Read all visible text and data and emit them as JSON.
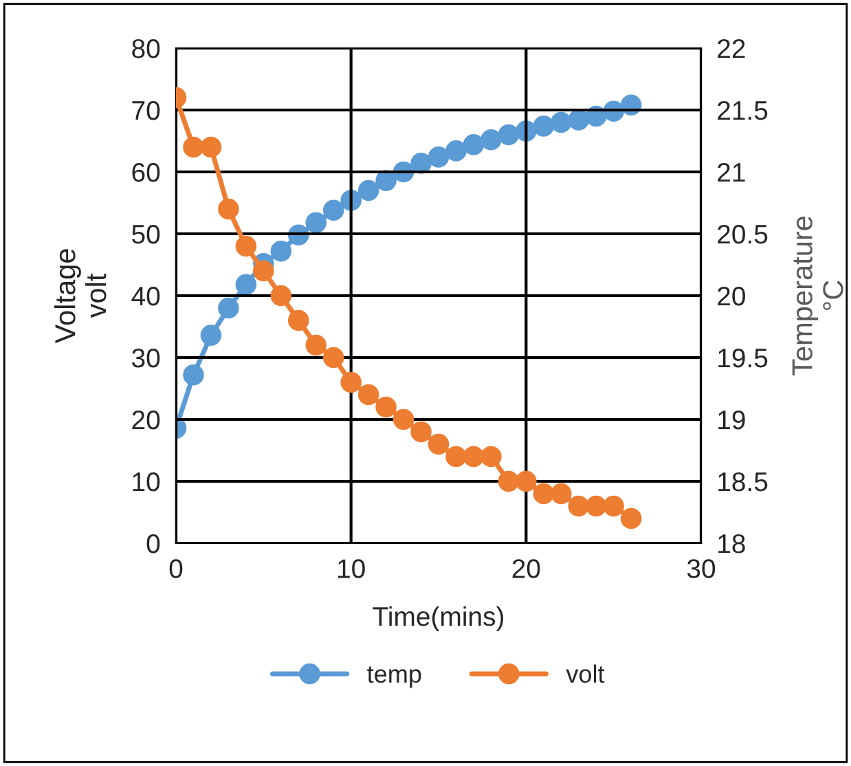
{
  "chart_data": {
    "type": "line",
    "xlabel": "Time(mins)",
    "ylabel": "Voltage\nvolt",
    "y2label": "Temperature\n°C",
    "x": [
      0,
      1,
      2,
      3,
      4,
      5,
      6,
      7,
      8,
      9,
      10,
      11,
      12,
      13,
      14,
      15,
      16,
      17,
      18,
      19,
      20,
      21,
      22,
      23,
      24,
      25,
      26
    ],
    "series": [
      {
        "name": "temp",
        "color": "#5b9bd5",
        "axis": "y2",
        "values": [
          18.93,
          19.36,
          19.68,
          19.9,
          20.09,
          20.26,
          20.36,
          20.49,
          20.59,
          20.69,
          20.77,
          20.85,
          20.93,
          21.0,
          21.07,
          21.12,
          21.17,
          21.22,
          21.26,
          21.3,
          21.33,
          21.37,
          21.4,
          21.42,
          21.45,
          21.49,
          21.54
        ]
      },
      {
        "name": "volt",
        "color": "#ed7d31",
        "values": [
          72,
          64,
          64,
          54,
          48,
          44,
          40,
          36,
          32,
          30,
          26,
          24,
          22,
          20,
          18,
          16,
          14,
          14,
          14,
          10,
          10,
          8,
          8,
          6,
          6,
          6,
          4
        ]
      }
    ],
    "xlim": [
      0,
      30
    ],
    "xticks": [
      0,
      10,
      20,
      30
    ],
    "ylim": [
      0,
      80
    ],
    "yticks": [
      0,
      10,
      20,
      30,
      40,
      50,
      60,
      70,
      80
    ],
    "y2lim": [
      18,
      22
    ],
    "y2ticks": [
      18,
      18.5,
      19,
      19.5,
      20,
      20.5,
      21,
      21.5,
      22
    ],
    "grid": true,
    "legend": "bottom",
    "marker": "circle",
    "line_style": "solid"
  }
}
